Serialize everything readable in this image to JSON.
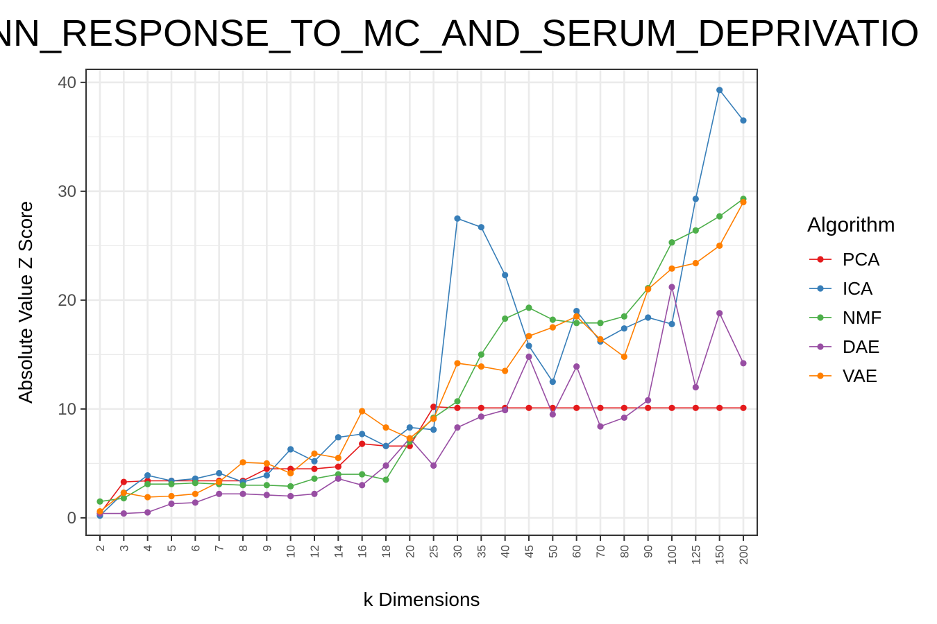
{
  "chart_data": {
    "type": "line",
    "title": "NN_RESPONSE_TO_MC_AND_SERUM_DEPRIVATIO",
    "xlabel": "k Dimensions",
    "ylabel": "Absolute Value Z Score",
    "categories": [
      "2",
      "3",
      "4",
      "5",
      "6",
      "7",
      "8",
      "9",
      "10",
      "12",
      "14",
      "16",
      "18",
      "20",
      "25",
      "30",
      "35",
      "40",
      "45",
      "50",
      "60",
      "70",
      "80",
      "90",
      "100",
      "125",
      "150",
      "200"
    ],
    "ylim": [
      -1.6,
      41.2
    ],
    "yticks": [
      0,
      10,
      20,
      30,
      40
    ],
    "grid": true,
    "legend": {
      "title": "Algorithm",
      "placement": "right"
    },
    "series": [
      {
        "name": "PCA",
        "color": "#e41a1c",
        "values": [
          0.4,
          3.3,
          3.4,
          3.4,
          3.4,
          3.4,
          3.4,
          4.5,
          4.5,
          4.5,
          4.7,
          6.8,
          6.6,
          6.6,
          10.2,
          10.1,
          10.1,
          10.1,
          10.1,
          10.1,
          10.1,
          10.1,
          10.1,
          10.1,
          10.1,
          10.1,
          10.1,
          10.1
        ]
      },
      {
        "name": "ICA",
        "color": "#377eb8",
        "values": [
          0.2,
          2.3,
          3.9,
          3.4,
          3.6,
          4.1,
          3.3,
          3.9,
          6.3,
          5.2,
          7.4,
          7.7,
          6.6,
          8.3,
          8.1,
          27.5,
          26.7,
          22.3,
          15.8,
          12.5,
          19.0,
          16.2,
          17.4,
          18.4,
          17.8,
          29.3,
          39.3,
          36.5
        ]
      },
      {
        "name": "NMF",
        "color": "#4daf4a",
        "values": [
          1.5,
          1.8,
          3.1,
          3.1,
          3.2,
          3.1,
          3.0,
          3.0,
          2.9,
          3.6,
          4.0,
          4.0,
          3.5,
          7.0,
          9.2,
          10.7,
          15.0,
          18.3,
          19.3,
          18.2,
          17.9,
          17.9,
          18.5,
          21.1,
          25.3,
          26.4,
          27.7,
          29.3
        ]
      },
      {
        "name": "DAE",
        "color": "#984ea3",
        "values": [
          0.4,
          0.4,
          0.5,
          1.3,
          1.4,
          2.2,
          2.2,
          2.1,
          2.0,
          2.2,
          3.6,
          3.0,
          4.8,
          7.3,
          4.8,
          8.3,
          9.3,
          9.9,
          14.8,
          9.5,
          13.9,
          8.4,
          9.2,
          10.8,
          21.2,
          12.0,
          18.8,
          14.2
        ]
      },
      {
        "name": "VAE",
        "color": "#ff7f00",
        "values": [
          0.6,
          2.3,
          1.9,
          2.0,
          2.2,
          3.3,
          5.1,
          5.0,
          4.1,
          5.9,
          5.5,
          9.8,
          8.3,
          7.3,
          9.1,
          14.2,
          13.9,
          13.5,
          16.7,
          17.5,
          18.5,
          16.4,
          14.8,
          21.0,
          22.9,
          23.4,
          25.0,
          29.0
        ]
      }
    ]
  }
}
